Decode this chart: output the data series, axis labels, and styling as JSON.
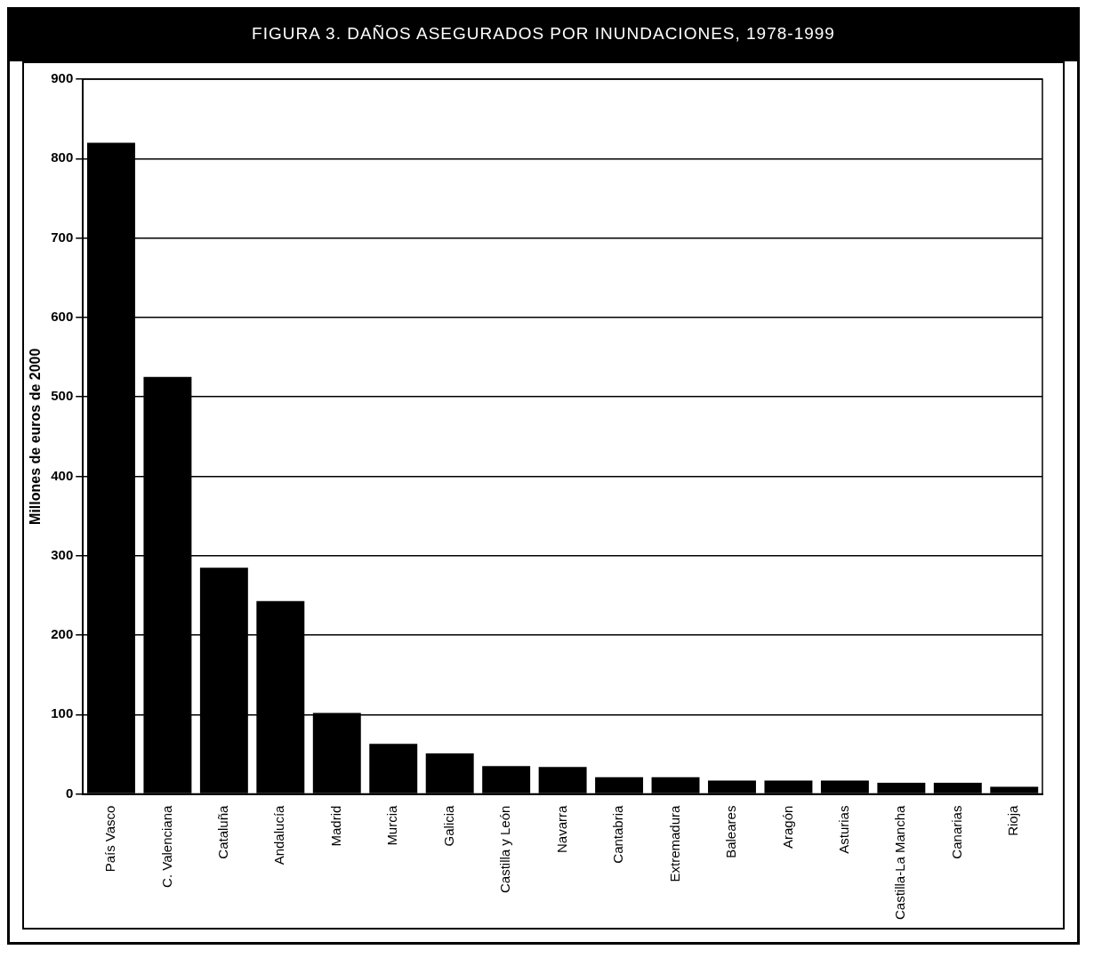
{
  "chart_data": {
    "type": "bar",
    "title": "FIGURA 3.  DAÑOS ASEGURADOS POR INUNDACIONES, 1978-1999",
    "ylabel": "Millones de euros de 2000",
    "categories": [
      "País Vasco",
      "C. Valenciana",
      "Cataluña",
      "Andalucía",
      "Madrid",
      "Murcia",
      "Galicia",
      "Castilla y León",
      "Navarra",
      "Cantabria",
      "Extremadura",
      "Baleares",
      "Aragón",
      "Asturias",
      "Castilla-La Mancha",
      "Canarias",
      "Rioja"
    ],
    "values": [
      820,
      525,
      285,
      243,
      102,
      63,
      51,
      35,
      34,
      21,
      21,
      17,
      17,
      17,
      14,
      14,
      9
    ],
    "color": "#000000",
    "ylim": [
      0,
      900
    ],
    "yticks": [
      0,
      100,
      200,
      300,
      400,
      500,
      600,
      700,
      800,
      900
    ],
    "grid": "y"
  }
}
